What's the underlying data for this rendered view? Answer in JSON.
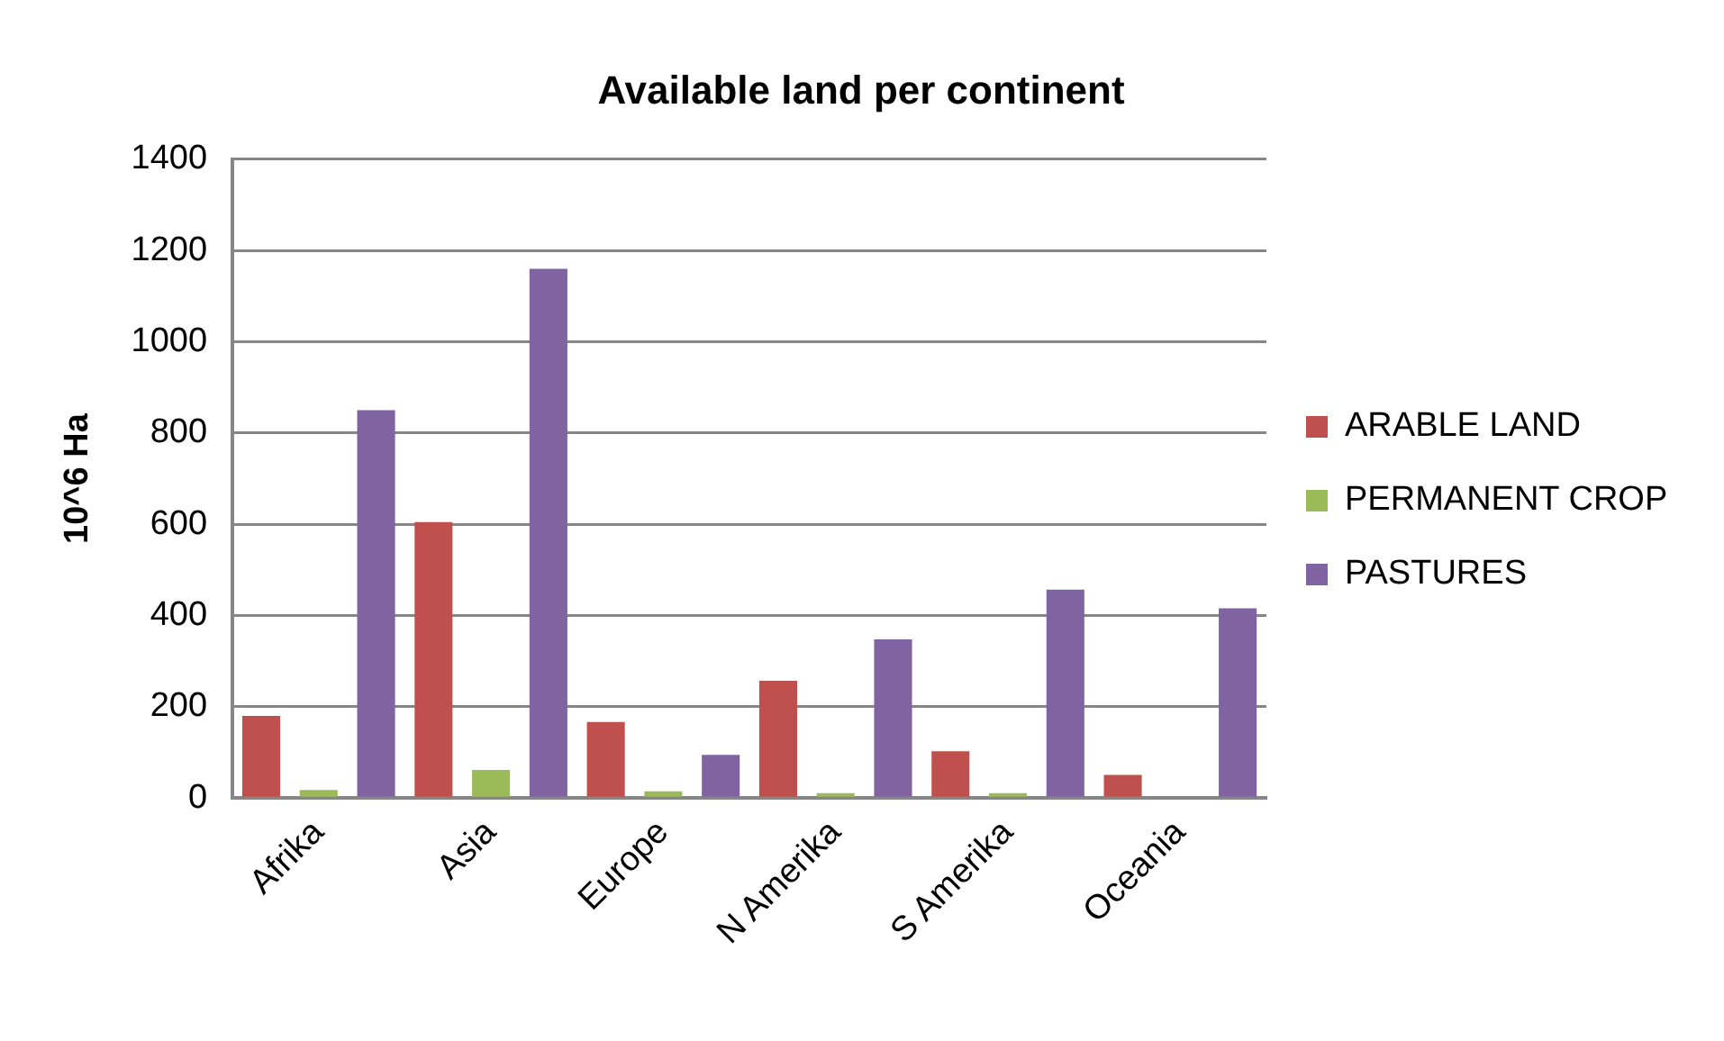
{
  "chart_data": {
    "type": "bar",
    "title": "Available land per continent",
    "ylabel": "10^6 Ha",
    "categories": [
      "Afrika",
      "Asia",
      "Europe",
      "N Amerika",
      "S Amerika",
      "Oceania"
    ],
    "series": [
      {
        "name": "ARABLE LAND",
        "color": "#c0504d",
        "values": [
          180,
          605,
          167,
          257,
          103,
          51
        ]
      },
      {
        "name": "PERMANENT CROP",
        "color": "#9bbb59",
        "values": [
          18,
          62,
          15,
          11,
          11,
          null
        ]
      },
      {
        "name": "PASTURES",
        "color": "#8064a2",
        "values": [
          850,
          1160,
          95,
          348,
          457,
          416
        ]
      }
    ],
    "ylim": [
      0,
      1400
    ],
    "yticks": [
      0,
      200,
      400,
      600,
      800,
      1000,
      1200,
      1400
    ],
    "grid": "y",
    "legend": "right"
  }
}
